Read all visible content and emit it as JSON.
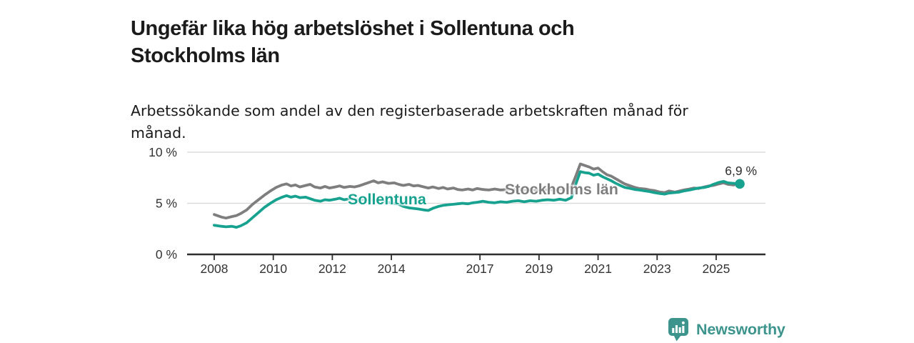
{
  "header": {
    "title_lines": [
      "Ungefär lika hög arbetslöshet i Sollentuna och",
      "Stockholms län"
    ],
    "subtitle_lines": [
      "Arbetssökande som andel av den registerbaserade arbetskraften månad för",
      "månad."
    ]
  },
  "chart_data": {
    "type": "line",
    "title": "Ungefär lika hög arbetslöshet i Sollentuna och Stockholms län",
    "subtitle": "Arbetssökande som andel av den registerbaserade arbetskraften månad för månad.",
    "unit": "%",
    "grid": "horizontal-only",
    "legend": "inline-labels",
    "ylim": [
      0,
      10
    ],
    "xlim_years": [
      2008,
      2025.8
    ],
    "x_ticks": [
      2008,
      2010,
      2012,
      2014,
      2017,
      2019,
      2021,
      2023,
      2025
    ],
    "y_ticks": [
      {
        "value": 0,
        "label": "0 %"
      },
      {
        "value": 5,
        "label": "5 %"
      },
      {
        "value": 10,
        "label": "10 %"
      }
    ],
    "series": [
      {
        "name": "Stockholms län",
        "color": "#7e7e7e",
        "points": [
          [
            2008.0,
            3.9
          ],
          [
            2008.25,
            3.65
          ],
          [
            2008.4,
            3.55
          ],
          [
            2008.6,
            3.7
          ],
          [
            2008.75,
            3.8
          ],
          [
            2008.9,
            4.0
          ],
          [
            2009.1,
            4.35
          ],
          [
            2009.3,
            4.9
          ],
          [
            2009.5,
            5.35
          ],
          [
            2009.7,
            5.8
          ],
          [
            2009.9,
            6.2
          ],
          [
            2010.1,
            6.55
          ],
          [
            2010.3,
            6.8
          ],
          [
            2010.45,
            6.9
          ],
          [
            2010.6,
            6.7
          ],
          [
            2010.75,
            6.8
          ],
          [
            2010.9,
            6.6
          ],
          [
            2011.1,
            6.75
          ],
          [
            2011.25,
            6.85
          ],
          [
            2011.4,
            6.6
          ],
          [
            2011.6,
            6.5
          ],
          [
            2011.75,
            6.65
          ],
          [
            2011.9,
            6.5
          ],
          [
            2012.1,
            6.6
          ],
          [
            2012.25,
            6.7
          ],
          [
            2012.4,
            6.55
          ],
          [
            2012.6,
            6.65
          ],
          [
            2012.75,
            6.6
          ],
          [
            2012.9,
            6.7
          ],
          [
            2013.1,
            6.9
          ],
          [
            2013.25,
            7.05
          ],
          [
            2013.4,
            7.2
          ],
          [
            2013.55,
            7.0
          ],
          [
            2013.7,
            7.1
          ],
          [
            2013.9,
            6.95
          ],
          [
            2014.1,
            7.0
          ],
          [
            2014.25,
            6.85
          ],
          [
            2014.4,
            6.75
          ],
          [
            2014.6,
            6.85
          ],
          [
            2014.75,
            6.7
          ],
          [
            2014.9,
            6.75
          ],
          [
            2015.1,
            6.6
          ],
          [
            2015.25,
            6.5
          ],
          [
            2015.4,
            6.6
          ],
          [
            2015.6,
            6.45
          ],
          [
            2015.75,
            6.55
          ],
          [
            2015.9,
            6.4
          ],
          [
            2016.1,
            6.5
          ],
          [
            2016.25,
            6.35
          ],
          [
            2016.4,
            6.3
          ],
          [
            2016.6,
            6.4
          ],
          [
            2016.75,
            6.3
          ],
          [
            2016.9,
            6.45
          ],
          [
            2017.1,
            6.35
          ],
          [
            2017.3,
            6.3
          ],
          [
            2017.5,
            6.4
          ],
          [
            2017.7,
            6.3
          ],
          [
            2017.9,
            6.35
          ],
          [
            2018.1,
            6.3
          ],
          [
            2018.3,
            6.4
          ],
          [
            2018.5,
            6.3
          ],
          [
            2018.7,
            6.35
          ],
          [
            2018.9,
            6.25
          ],
          [
            2019.1,
            6.3
          ],
          [
            2019.3,
            6.35
          ],
          [
            2019.5,
            6.3
          ],
          [
            2019.7,
            6.4
          ],
          [
            2019.9,
            6.35
          ],
          [
            2020.1,
            6.6
          ],
          [
            2020.25,
            7.7
          ],
          [
            2020.4,
            8.85
          ],
          [
            2020.55,
            8.7
          ],
          [
            2020.7,
            8.55
          ],
          [
            2020.85,
            8.35
          ],
          [
            2021.0,
            8.45
          ],
          [
            2021.15,
            8.1
          ],
          [
            2021.3,
            7.8
          ],
          [
            2021.45,
            7.65
          ],
          [
            2021.6,
            7.4
          ],
          [
            2021.75,
            7.15
          ],
          [
            2021.9,
            6.9
          ],
          [
            2022.1,
            6.7
          ],
          [
            2022.25,
            6.55
          ],
          [
            2022.4,
            6.45
          ],
          [
            2022.6,
            6.4
          ],
          [
            2022.75,
            6.3
          ],
          [
            2022.9,
            6.25
          ],
          [
            2023.1,
            6.1
          ],
          [
            2023.25,
            6.05
          ],
          [
            2023.4,
            6.2
          ],
          [
            2023.6,
            6.1
          ],
          [
            2023.75,
            6.2
          ],
          [
            2023.9,
            6.3
          ],
          [
            2024.1,
            6.4
          ],
          [
            2024.25,
            6.5
          ],
          [
            2024.4,
            6.45
          ],
          [
            2024.6,
            6.6
          ],
          [
            2024.75,
            6.7
          ],
          [
            2024.9,
            6.75
          ],
          [
            2025.1,
            6.9
          ],
          [
            2025.25,
            7.0
          ],
          [
            2025.4,
            6.85
          ],
          [
            2025.6,
            6.8
          ]
        ]
      },
      {
        "name": "Sollentuna",
        "color": "#17a28f",
        "points": [
          [
            2008.0,
            2.85
          ],
          [
            2008.25,
            2.75
          ],
          [
            2008.4,
            2.7
          ],
          [
            2008.6,
            2.75
          ],
          [
            2008.75,
            2.65
          ],
          [
            2008.9,
            2.8
          ],
          [
            2009.1,
            3.1
          ],
          [
            2009.3,
            3.6
          ],
          [
            2009.5,
            4.1
          ],
          [
            2009.7,
            4.6
          ],
          [
            2009.9,
            5.0
          ],
          [
            2010.1,
            5.35
          ],
          [
            2010.3,
            5.6
          ],
          [
            2010.45,
            5.75
          ],
          [
            2010.6,
            5.6
          ],
          [
            2010.75,
            5.7
          ],
          [
            2010.9,
            5.55
          ],
          [
            2011.1,
            5.6
          ],
          [
            2011.25,
            5.45
          ],
          [
            2011.4,
            5.3
          ],
          [
            2011.6,
            5.2
          ],
          [
            2011.75,
            5.35
          ],
          [
            2011.9,
            5.3
          ],
          [
            2012.1,
            5.4
          ],
          [
            2012.25,
            5.5
          ],
          [
            2012.4,
            5.35
          ],
          [
            2012.6,
            5.45
          ],
          [
            2012.75,
            5.3
          ],
          [
            2012.9,
            5.35
          ],
          [
            2013.1,
            5.4
          ],
          [
            2013.25,
            5.3
          ],
          [
            2013.4,
            5.35
          ],
          [
            2013.55,
            5.2
          ],
          [
            2013.7,
            5.25
          ],
          [
            2013.9,
            5.1
          ],
          [
            2014.1,
            5.0
          ],
          [
            2014.25,
            4.9
          ],
          [
            2014.4,
            4.7
          ],
          [
            2014.6,
            4.55
          ],
          [
            2014.75,
            4.5
          ],
          [
            2014.9,
            4.45
          ],
          [
            2015.1,
            4.35
          ],
          [
            2015.25,
            4.3
          ],
          [
            2015.4,
            4.5
          ],
          [
            2015.6,
            4.7
          ],
          [
            2015.75,
            4.8
          ],
          [
            2015.9,
            4.85
          ],
          [
            2016.1,
            4.9
          ],
          [
            2016.25,
            4.95
          ],
          [
            2016.4,
            5.0
          ],
          [
            2016.6,
            4.95
          ],
          [
            2016.75,
            5.05
          ],
          [
            2016.9,
            5.1
          ],
          [
            2017.1,
            5.2
          ],
          [
            2017.3,
            5.1
          ],
          [
            2017.5,
            5.05
          ],
          [
            2017.7,
            5.15
          ],
          [
            2017.9,
            5.1
          ],
          [
            2018.1,
            5.2
          ],
          [
            2018.3,
            5.25
          ],
          [
            2018.5,
            5.15
          ],
          [
            2018.7,
            5.25
          ],
          [
            2018.9,
            5.2
          ],
          [
            2019.1,
            5.3
          ],
          [
            2019.3,
            5.35
          ],
          [
            2019.5,
            5.3
          ],
          [
            2019.7,
            5.4
          ],
          [
            2019.9,
            5.3
          ],
          [
            2020.1,
            5.55
          ],
          [
            2020.25,
            6.9
          ],
          [
            2020.4,
            8.1
          ],
          [
            2020.55,
            8.0
          ],
          [
            2020.7,
            7.95
          ],
          [
            2020.85,
            7.75
          ],
          [
            2021.0,
            7.85
          ],
          [
            2021.15,
            7.6
          ],
          [
            2021.3,
            7.4
          ],
          [
            2021.45,
            7.2
          ],
          [
            2021.6,
            6.95
          ],
          [
            2021.75,
            6.75
          ],
          [
            2021.9,
            6.55
          ],
          [
            2022.1,
            6.45
          ],
          [
            2022.25,
            6.35
          ],
          [
            2022.4,
            6.3
          ],
          [
            2022.6,
            6.2
          ],
          [
            2022.75,
            6.15
          ],
          [
            2022.9,
            6.05
          ],
          [
            2023.1,
            5.95
          ],
          [
            2023.25,
            5.9
          ],
          [
            2023.4,
            6.0
          ],
          [
            2023.6,
            6.05
          ],
          [
            2023.75,
            6.1
          ],
          [
            2023.9,
            6.2
          ],
          [
            2024.1,
            6.3
          ],
          [
            2024.25,
            6.4
          ],
          [
            2024.4,
            6.5
          ],
          [
            2024.6,
            6.55
          ],
          [
            2024.75,
            6.65
          ],
          [
            2024.9,
            6.85
          ],
          [
            2025.1,
            7.05
          ],
          [
            2025.25,
            7.15
          ],
          [
            2025.4,
            7.0
          ],
          [
            2025.6,
            6.95
          ],
          [
            2025.8,
            6.9
          ]
        ]
      }
    ],
    "end_annotation": {
      "label": "6,9 %",
      "series": "Sollentuna",
      "value": 6.9
    }
  },
  "footer": {
    "brand": "Newsworthy",
    "brand_color": "#3c948c"
  }
}
